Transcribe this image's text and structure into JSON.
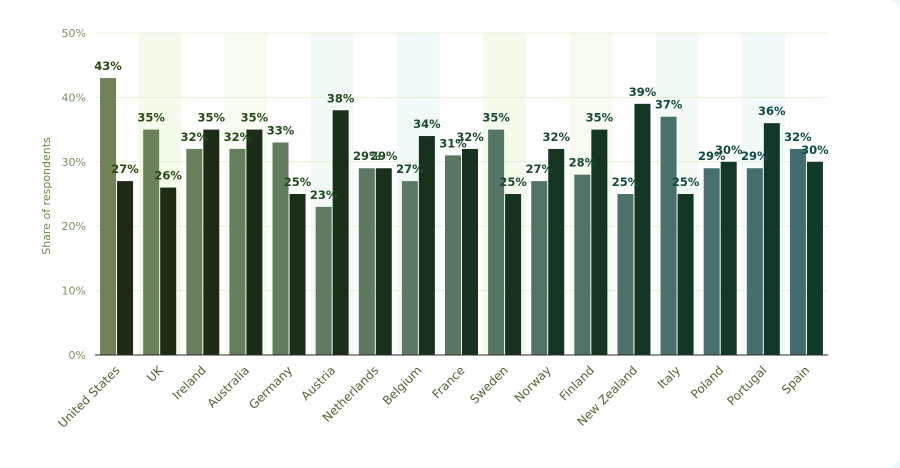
{
  "chart_data": {
    "type": "bar",
    "title": "",
    "xlabel": "",
    "ylabel": "Share of respondents",
    "ylim": [
      0,
      50
    ],
    "y_ticks": [
      "0%",
      "10%",
      "20%",
      "30%",
      "40%",
      "50%"
    ],
    "value_suffix": "%",
    "grid": true,
    "legend": "none",
    "categories": [
      "United States",
      "UK",
      "Ireland",
      "Australia",
      "Germany",
      "Austria",
      "Netherlands",
      "Belgium",
      "France",
      "Sweden",
      "Norway",
      "Finland",
      "New Zealand",
      "Italy",
      "Poland",
      "Portugal",
      "Spain"
    ],
    "series": [
      {
        "values": [
          43,
          35,
          32,
          32,
          33,
          23,
          29,
          27,
          31,
          35,
          27,
          28,
          25,
          37,
          29,
          29,
          32
        ]
      },
      {
        "values": [
          27,
          26,
          35,
          35,
          25,
          38,
          29,
          34,
          32,
          25,
          32,
          35,
          39,
          25,
          30,
          36,
          30
        ]
      }
    ],
    "colors": {
      "series_1": [
        "#6f8258",
        "#6b8159",
        "#68805b",
        "#657e5c",
        "#627d5d",
        "#5f7b5f",
        "#5c7a60",
        "#5a7962",
        "#577763",
        "#547665",
        "#517466",
        "#4f7368",
        "#4c726a",
        "#4a706b",
        "#476f6d",
        "#456e6f",
        "#436d70"
      ],
      "series_2": [
        "#1f2a14",
        "#1e2b15",
        "#1d2c16",
        "#1c2d17",
        "#1b2e18",
        "#1a2f1a",
        "#19301b",
        "#18311c",
        "#17321e",
        "#16331f",
        "#153421",
        "#143522",
        "#133624",
        "#133725",
        "#123827",
        "#113929",
        "#103a2a"
      ],
      "label_start": "#2a4a0e",
      "label_end": "#0d4a4a",
      "grid": "#e7efd9",
      "axis": "#2b2b2b"
    }
  }
}
